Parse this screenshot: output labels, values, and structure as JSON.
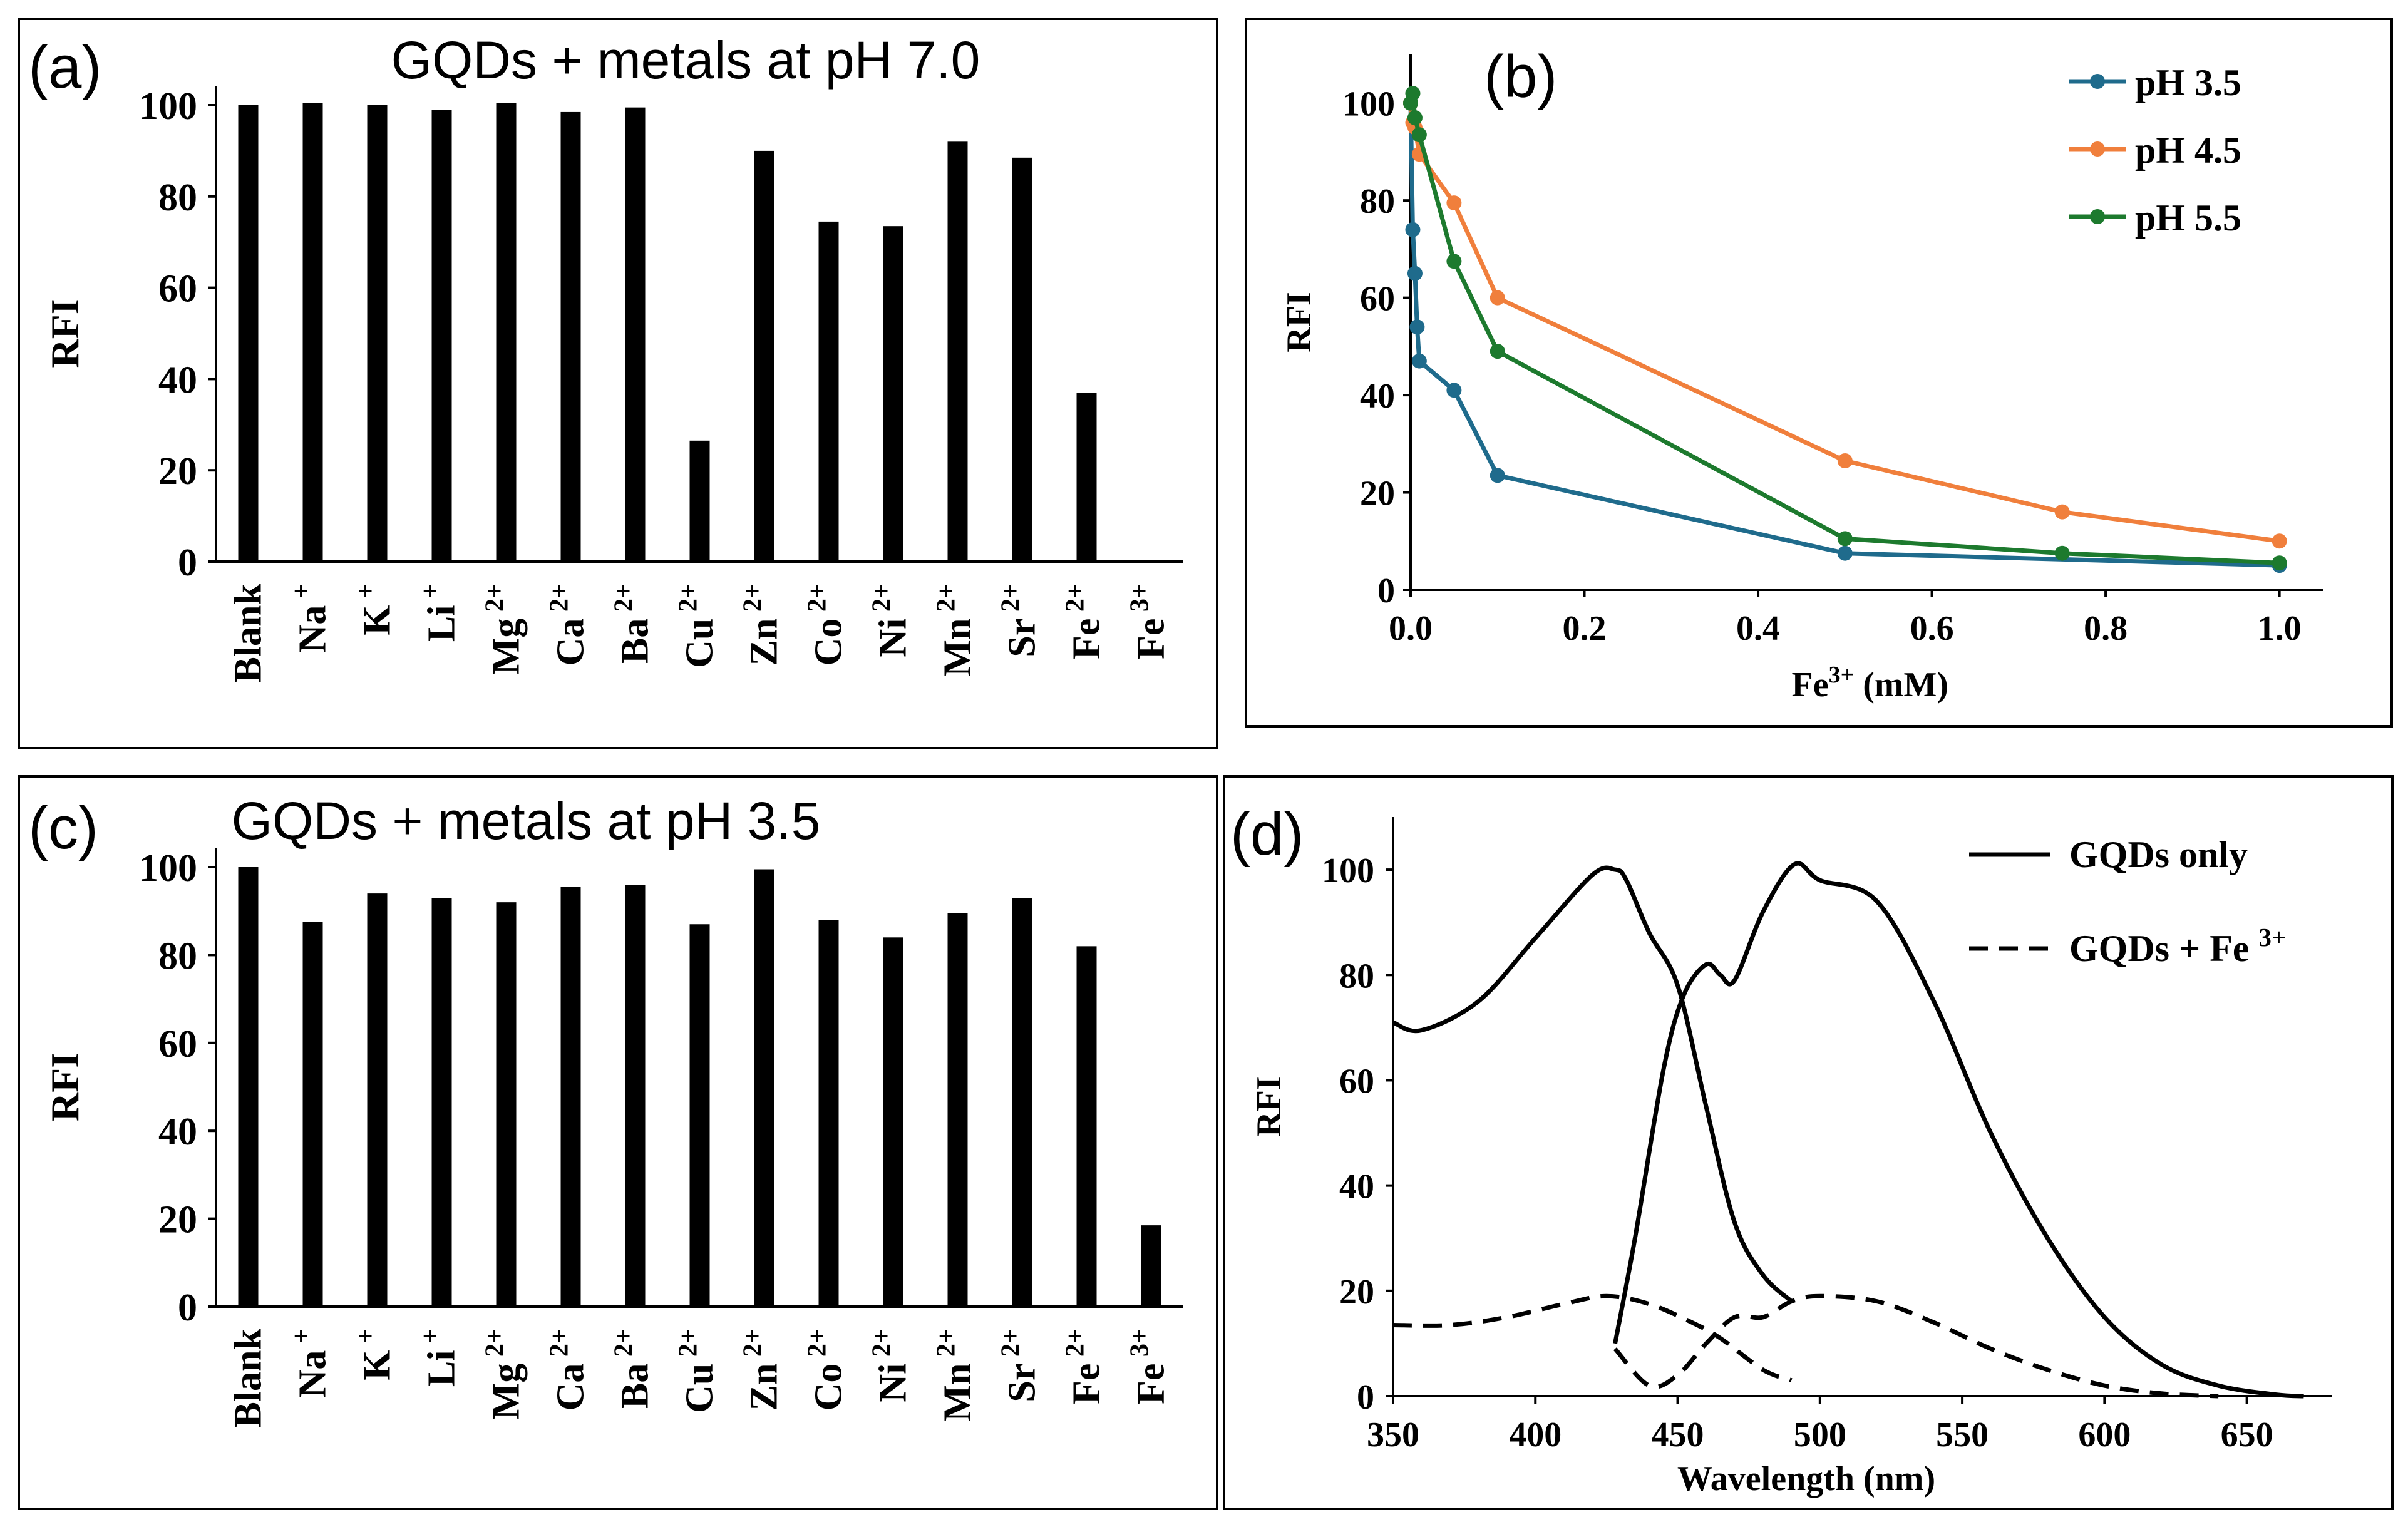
{
  "chart_data": [
    {
      "panel": "(a)",
      "type": "bar",
      "title": "GQDs + metals at pH 7.0",
      "ylabel": "RFI",
      "xlabel": "",
      "ylim": [
        0,
        100
      ],
      "yticks": [
        "0",
        "20",
        "40",
        "60",
        "80",
        "100"
      ],
      "categories": [
        {
          "base": "Blank",
          "sup": ""
        },
        {
          "base": "Na",
          "sup": "+"
        },
        {
          "base": "K",
          "sup": "+"
        },
        {
          "base": "Li",
          "sup": "+"
        },
        {
          "base": "Mg",
          "sup": "2+"
        },
        {
          "base": "Ca",
          "sup": "2+"
        },
        {
          "base": "Ba",
          "sup": "2+"
        },
        {
          "base": "Cu",
          "sup": "2+"
        },
        {
          "base": "Zn",
          "sup": "2+"
        },
        {
          "base": "Co",
          "sup": "2+"
        },
        {
          "base": "Ni",
          "sup": "2+"
        },
        {
          "base": "Mn",
          "sup": "2+"
        },
        {
          "base": "Sr",
          "sup": "2+"
        },
        {
          "base": "Fe",
          "sup": "2+"
        },
        {
          "base": "Fe",
          "sup": "3+"
        }
      ],
      "values": [
        100,
        100.5,
        100,
        99,
        100.5,
        98.5,
        99.5,
        26.5,
        90,
        74.5,
        73.5,
        92,
        88.5,
        37,
        0
      ],
      "color": "#000000"
    },
    {
      "panel": "(b)",
      "type": "line",
      "title": "",
      "xlabel": "Fe3+ (mM)",
      "xlabel_base": "Fe",
      "xlabel_sup": "3+",
      "xlabel_rest": " (mM)",
      "ylabel": "RFI",
      "xlim": [
        0,
        1.05
      ],
      "ylim": [
        0,
        110
      ],
      "xticks": [
        "0.0",
        "0.2",
        "0.4",
        "0.6",
        "0.8",
        "1.0"
      ],
      "yticks": [
        "0",
        "20",
        "40",
        "60",
        "80",
        "100"
      ],
      "legend_position": "top-right",
      "series": [
        {
          "name": "pH 3.5",
          "color": "#1f6b8c",
          "x": [
            0.0,
            0.0025,
            0.005,
            0.0075,
            0.01,
            0.05,
            0.1,
            0.5,
            1.0
          ],
          "y": [
            100,
            74,
            65,
            54,
            47,
            41,
            23.5,
            7.5,
            5
          ]
        },
        {
          "name": "pH 4.5",
          "color": "#f07f3c",
          "x": [
            0.0,
            0.0025,
            0.005,
            0.01,
            0.05,
            0.1,
            0.5,
            0.75,
            1.0
          ],
          "y": [
            100,
            96,
            95,
            89.5,
            79.5,
            60,
            26.5,
            16,
            10
          ]
        },
        {
          "name": "pH 5.5",
          "color": "#1d7a2e",
          "x": [
            0.0,
            0.0025,
            0.005,
            0.01,
            0.05,
            0.1,
            0.5,
            0.75,
            1.0
          ],
          "y": [
            100,
            102,
            97,
            93.5,
            67.5,
            49,
            10.5,
            7.5,
            5.5
          ]
        }
      ]
    },
    {
      "panel": "(c)",
      "type": "bar",
      "title": "GQDs + metals at pH 3.5",
      "ylabel": "RFI",
      "xlabel": "",
      "ylim": [
        0,
        100
      ],
      "yticks": [
        "0",
        "20",
        "40",
        "60",
        "80",
        "100"
      ],
      "categories": [
        {
          "base": "Blank",
          "sup": ""
        },
        {
          "base": "Na",
          "sup": "+"
        },
        {
          "base": "K",
          "sup": "+"
        },
        {
          "base": "Li",
          "sup": "+"
        },
        {
          "base": "Mg",
          "sup": "2+"
        },
        {
          "base": "Ca",
          "sup": "2+"
        },
        {
          "base": "Ba",
          "sup": "2+"
        },
        {
          "base": "Cu",
          "sup": "2+"
        },
        {
          "base": "Zn",
          "sup": "2+"
        },
        {
          "base": "Co",
          "sup": "2+"
        },
        {
          "base": "Ni",
          "sup": "2+"
        },
        {
          "base": "Mn",
          "sup": "2+"
        },
        {
          "base": "Sr",
          "sup": "2+"
        },
        {
          "base": "Fe",
          "sup": "2+"
        },
        {
          "base": "Fe",
          "sup": "3+"
        }
      ],
      "values": [
        100,
        87.5,
        94,
        93,
        92,
        95.5,
        96,
        87,
        99.5,
        88,
        84,
        89.5,
        93,
        82,
        18.5
      ],
      "color": "#000000"
    },
    {
      "panel": "(d)",
      "type": "line",
      "title": "",
      "xlabel": "Wavelength (nm)",
      "ylabel": "RFI",
      "xlim": [
        350,
        680
      ],
      "ylim": [
        0,
        110
      ],
      "xticks": [
        "350",
        "400",
        "450",
        "500",
        "550",
        "600",
        "650"
      ],
      "yticks": [
        "0",
        "20",
        "40",
        "60",
        "80",
        "100"
      ],
      "legend_position": "top-right",
      "series": [
        {
          "name": "GQDs only",
          "style": "solid",
          "color": "#000000",
          "x": [
            350,
            360,
            380,
            400,
            420,
            428,
            432,
            440,
            450,
            460,
            470,
            480,
            490
          ],
          "y": [
            71,
            69.5,
            75,
            87,
            99,
            100,
            98,
            88,
            78,
            55,
            33,
            23,
            18
          ]
        },
        {
          "name": "GQDs only",
          "style": "solid",
          "color": "#000000",
          "x": [
            428,
            435,
            445,
            452,
            460,
            465,
            470,
            480,
            491,
            500,
            520,
            540,
            560,
            580,
            600,
            620,
            640,
            660,
            670
          ],
          "y": [
            10,
            30,
            62,
            76,
            82,
            80,
            79,
            92,
            101,
            98,
            94,
            75,
            50,
            30,
            15,
            6,
            2,
            0.3,
            0
          ]
        },
        {
          "name": "GQDs + Fe 3+",
          "style": "dashed",
          "color": "#000000",
          "x": [
            350,
            370,
            390,
            410,
            425,
            440,
            455,
            465,
            480,
            490
          ],
          "y": [
            13.5,
            13.5,
            15,
            17.5,
            19,
            17.5,
            14,
            11,
            5,
            3
          ]
        },
        {
          "name": "GQDs + Fe 3+",
          "style": "dashed",
          "color": "#000000",
          "x": [
            428,
            440,
            450,
            460,
            470,
            480,
            490,
            500,
            520,
            540,
            560,
            580,
            600,
            620,
            640
          ],
          "y": [
            9,
            2,
            4,
            10,
            15,
            15,
            18,
            19,
            18,
            14,
            9,
            5,
            2,
            0.5,
            0
          ]
        }
      ],
      "legend": [
        {
          "label": "GQDs only",
          "style": "solid"
        },
        {
          "label_base": "GQDs + Fe ",
          "label_sup": "3+",
          "style": "dashed"
        }
      ]
    }
  ]
}
